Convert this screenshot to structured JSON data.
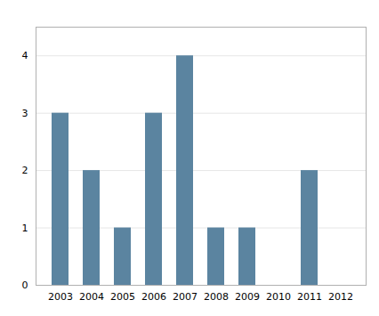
{
  "chart_data": {
    "type": "bar",
    "categories": [
      "2003",
      "2004",
      "2005",
      "2006",
      "2007",
      "2008",
      "2009",
      "2010",
      "2011",
      "2012"
    ],
    "values": [
      3,
      2,
      1,
      3,
      4,
      1,
      1,
      0,
      2,
      0
    ],
    "color": "#5b84a0",
    "ylim": [
      0,
      4.5
    ],
    "yticks": [
      0,
      1,
      2,
      3,
      4
    ],
    "grid": true
  }
}
